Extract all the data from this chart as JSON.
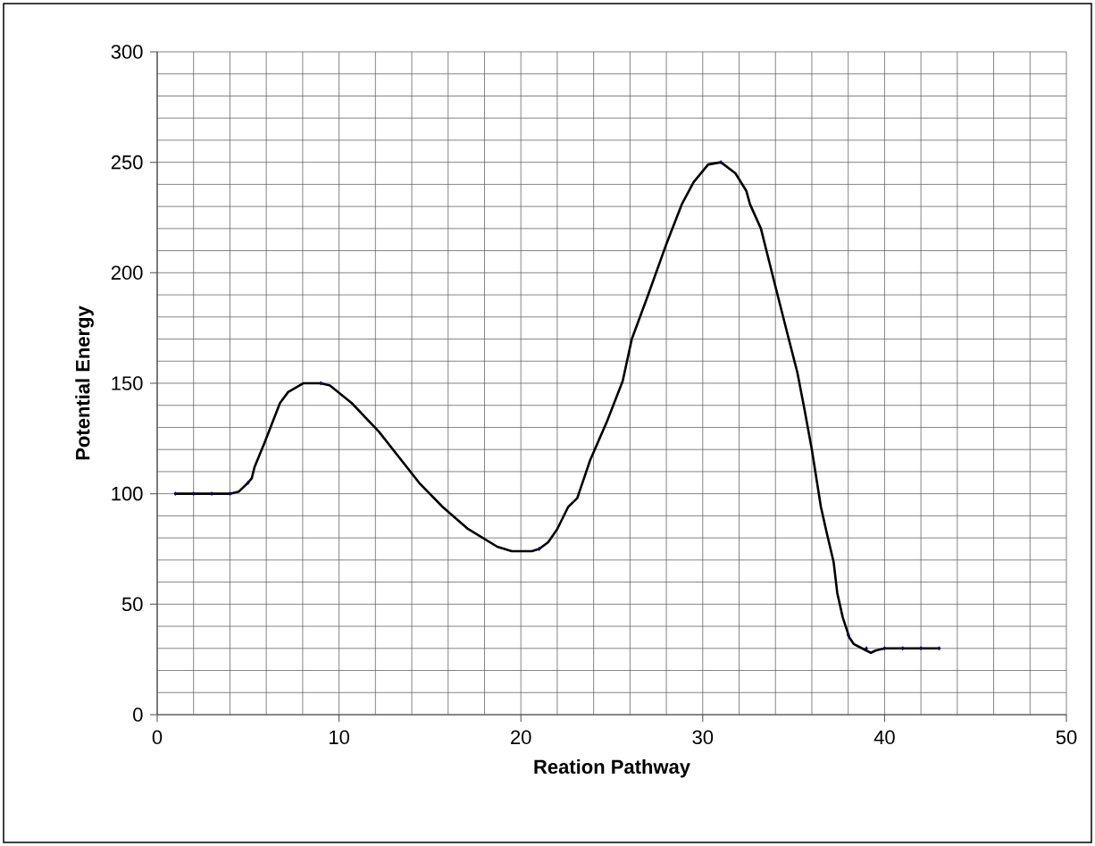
{
  "chart_data": {
    "type": "line",
    "xlabel": "Reation Pathway",
    "ylabel": "Potential Energy",
    "xlim": [
      0,
      50
    ],
    "ylim": [
      0,
      300
    ],
    "xticks": [
      0,
      10,
      20,
      30,
      40,
      50
    ],
    "yticks": [
      0,
      50,
      100,
      150,
      200,
      250,
      300
    ],
    "grid": true,
    "series": [
      {
        "color": "#000000",
        "marker": "none",
        "line_style": "solid",
        "x": [
          1,
          4,
          4.5,
          5,
          5.2,
          5.35,
          5.9,
          6.75,
          7.2,
          8.05,
          9,
          9.5,
          10.7,
          12.2,
          14.4,
          15.7,
          17.1,
          18.7,
          19.5,
          20.6,
          21,
          21.5,
          22,
          22.6,
          23.1,
          23.8,
          24.75,
          25.6,
          26.1,
          27,
          28,
          28.85,
          29.5,
          30.3,
          31,
          31.8,
          32.4,
          32.6,
          33.2,
          33.9,
          34.7,
          35.2,
          35.6,
          36,
          36.5,
          36.8,
          37.2,
          37.4,
          37.7,
          38.06,
          38.3,
          39,
          39.25,
          39.5,
          40,
          43
        ],
        "values": [
          100,
          100,
          101,
          105,
          107,
          112,
          123,
          141,
          146,
          150,
          150,
          149,
          141,
          128,
          105,
          94,
          84,
          76,
          74,
          74,
          75,
          78,
          84,
          94,
          98,
          115,
          133,
          151,
          170,
          190,
          213,
          231,
          241,
          249,
          250,
          245,
          237,
          231,
          220,
          197,
          171,
          155,
          138,
          120,
          94,
          83,
          69,
          55,
          44,
          35,
          32,
          29,
          28,
          29,
          30,
          30
        ]
      },
      {
        "type": "scatter",
        "color": "#000080",
        "marker": "diamond",
        "x": [
          1,
          2,
          3,
          4,
          5,
          9,
          21,
          31,
          38,
          39,
          40,
          41,
          42,
          43
        ],
        "values": [
          100,
          100,
          100,
          100,
          105,
          150,
          75,
          250,
          36,
          30,
          30,
          30,
          30,
          30
        ]
      }
    ]
  }
}
